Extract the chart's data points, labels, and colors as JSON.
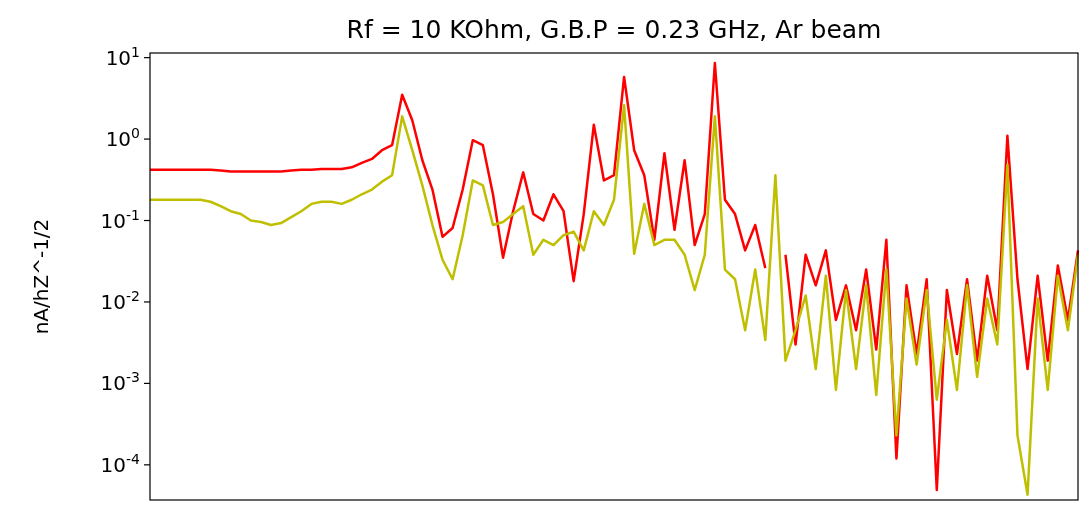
{
  "chart_data": {
    "type": "line",
    "title": "Rf = 10 KOhm, G.B.P = 0.23 GHz, Ar beam",
    "ylabel": "nA/hZ^-1/2",
    "log": "y",
    "tick_labels": "y",
    "ylim": [
      3.7e-05,
      11.4
    ],
    "yticks": [
      {
        "value": 0.0001,
        "label": "10$^{-4}$"
      },
      {
        "value": 0.001,
        "label": "10$^{-3}$"
      },
      {
        "value": 0.01,
        "label": "10$^{-2}$"
      },
      {
        "value": 0.1,
        "label": "10$^{-1}$"
      },
      {
        "value": 1,
        "label": "10$^{0}$"
      },
      {
        "value": 10,
        "label": "10$^{1}$"
      }
    ],
    "categories": [
      null,
      null,
      null,
      null,
      null,
      null,
      null,
      null,
      null,
      null,
      null,
      null,
      null,
      null,
      null,
      null,
      null,
      null,
      null,
      null,
      null,
      null,
      null,
      null,
      null,
      null,
      null,
      null,
      null,
      null,
      null,
      null,
      null,
      null,
      null,
      null,
      null,
      null,
      null,
      null,
      null,
      null,
      null,
      null,
      null,
      null,
      null,
      null,
      null,
      null,
      null,
      null,
      null,
      null,
      null,
      null,
      null,
      null,
      null,
      null,
      null,
      null,
      null,
      null,
      null,
      null,
      null,
      null,
      null,
      null,
      null,
      null,
      null,
      null,
      null,
      null,
      null,
      null,
      null,
      null,
      null,
      null,
      null,
      null,
      null,
      null,
      null,
      null,
      null,
      null,
      null,
      null,
      null
    ],
    "series": [
      {
        "color": "#ff0000",
        "values": [
          0.42,
          0.42,
          0.42,
          0.42,
          0.42,
          0.42,
          0.42,
          0.41,
          0.4,
          0.4,
          0.4,
          0.4,
          0.4,
          0.4,
          0.41,
          0.42,
          0.42,
          0.43,
          0.43,
          0.43,
          0.45,
          0.51,
          0.57,
          0.73,
          0.84,
          3.5,
          1.7,
          0.55,
          0.24,
          0.063,
          0.081,
          0.24,
          0.97,
          0.84,
          0.21,
          0.035,
          0.13,
          0.39,
          0.12,
          0.1,
          0.21,
          0.13,
          0.018,
          0.12,
          1.5,
          0.31,
          0.36,
          5.8,
          0.73,
          0.36,
          0.058,
          0.67,
          0.077,
          0.55,
          0.05,
          0.12,
          8.6,
          0.18,
          0.12,
          0.043,
          0.088,
          0.026,
          null,
          0.038,
          0.003,
          0.038,
          0.016,
          0.043,
          0.006,
          0.016,
          0.0045,
          0.025,
          0.0026,
          0.058,
          0.00012,
          0.016,
          0.0023,
          0.019,
          4.9e-05,
          0.014,
          0.0023,
          0.019,
          0.0019,
          0.021,
          0.0045,
          1.1,
          0.019,
          0.0015,
          0.021,
          0.0019,
          0.028,
          0.006,
          0.043
        ]
      },
      {
        "color": "#bfbf00",
        "values": [
          0.18,
          0.18,
          0.18,
          0.18,
          0.18,
          0.18,
          0.17,
          0.15,
          0.13,
          0.12,
          0.1,
          0.096,
          0.088,
          0.093,
          0.11,
          0.13,
          0.16,
          0.17,
          0.17,
          0.16,
          0.18,
          0.21,
          0.24,
          0.3,
          0.36,
          1.9,
          0.73,
          0.27,
          0.088,
          0.033,
          0.019,
          0.066,
          0.31,
          0.27,
          0.088,
          0.096,
          0.12,
          0.15,
          0.038,
          0.058,
          0.05,
          0.066,
          0.073,
          0.043,
          0.13,
          0.088,
          0.18,
          2.6,
          0.039,
          0.16,
          0.05,
          0.058,
          0.058,
          0.038,
          0.014,
          0.038,
          1.9,
          0.025,
          0.019,
          0.0045,
          0.025,
          0.0034,
          0.36,
          0.0019,
          0.0045,
          0.012,
          0.0015,
          0.021,
          0.00083,
          0.014,
          0.0015,
          0.016,
          0.00072,
          0.025,
          0.00023,
          0.011,
          0.0017,
          0.014,
          0.00063,
          0.006,
          0.00083,
          0.016,
          0.0012,
          0.011,
          0.003,
          0.48,
          0.00023,
          4.3e-05,
          0.011,
          0.00083,
          0.021,
          0.0045,
          0.038
        ]
      }
    ]
  }
}
